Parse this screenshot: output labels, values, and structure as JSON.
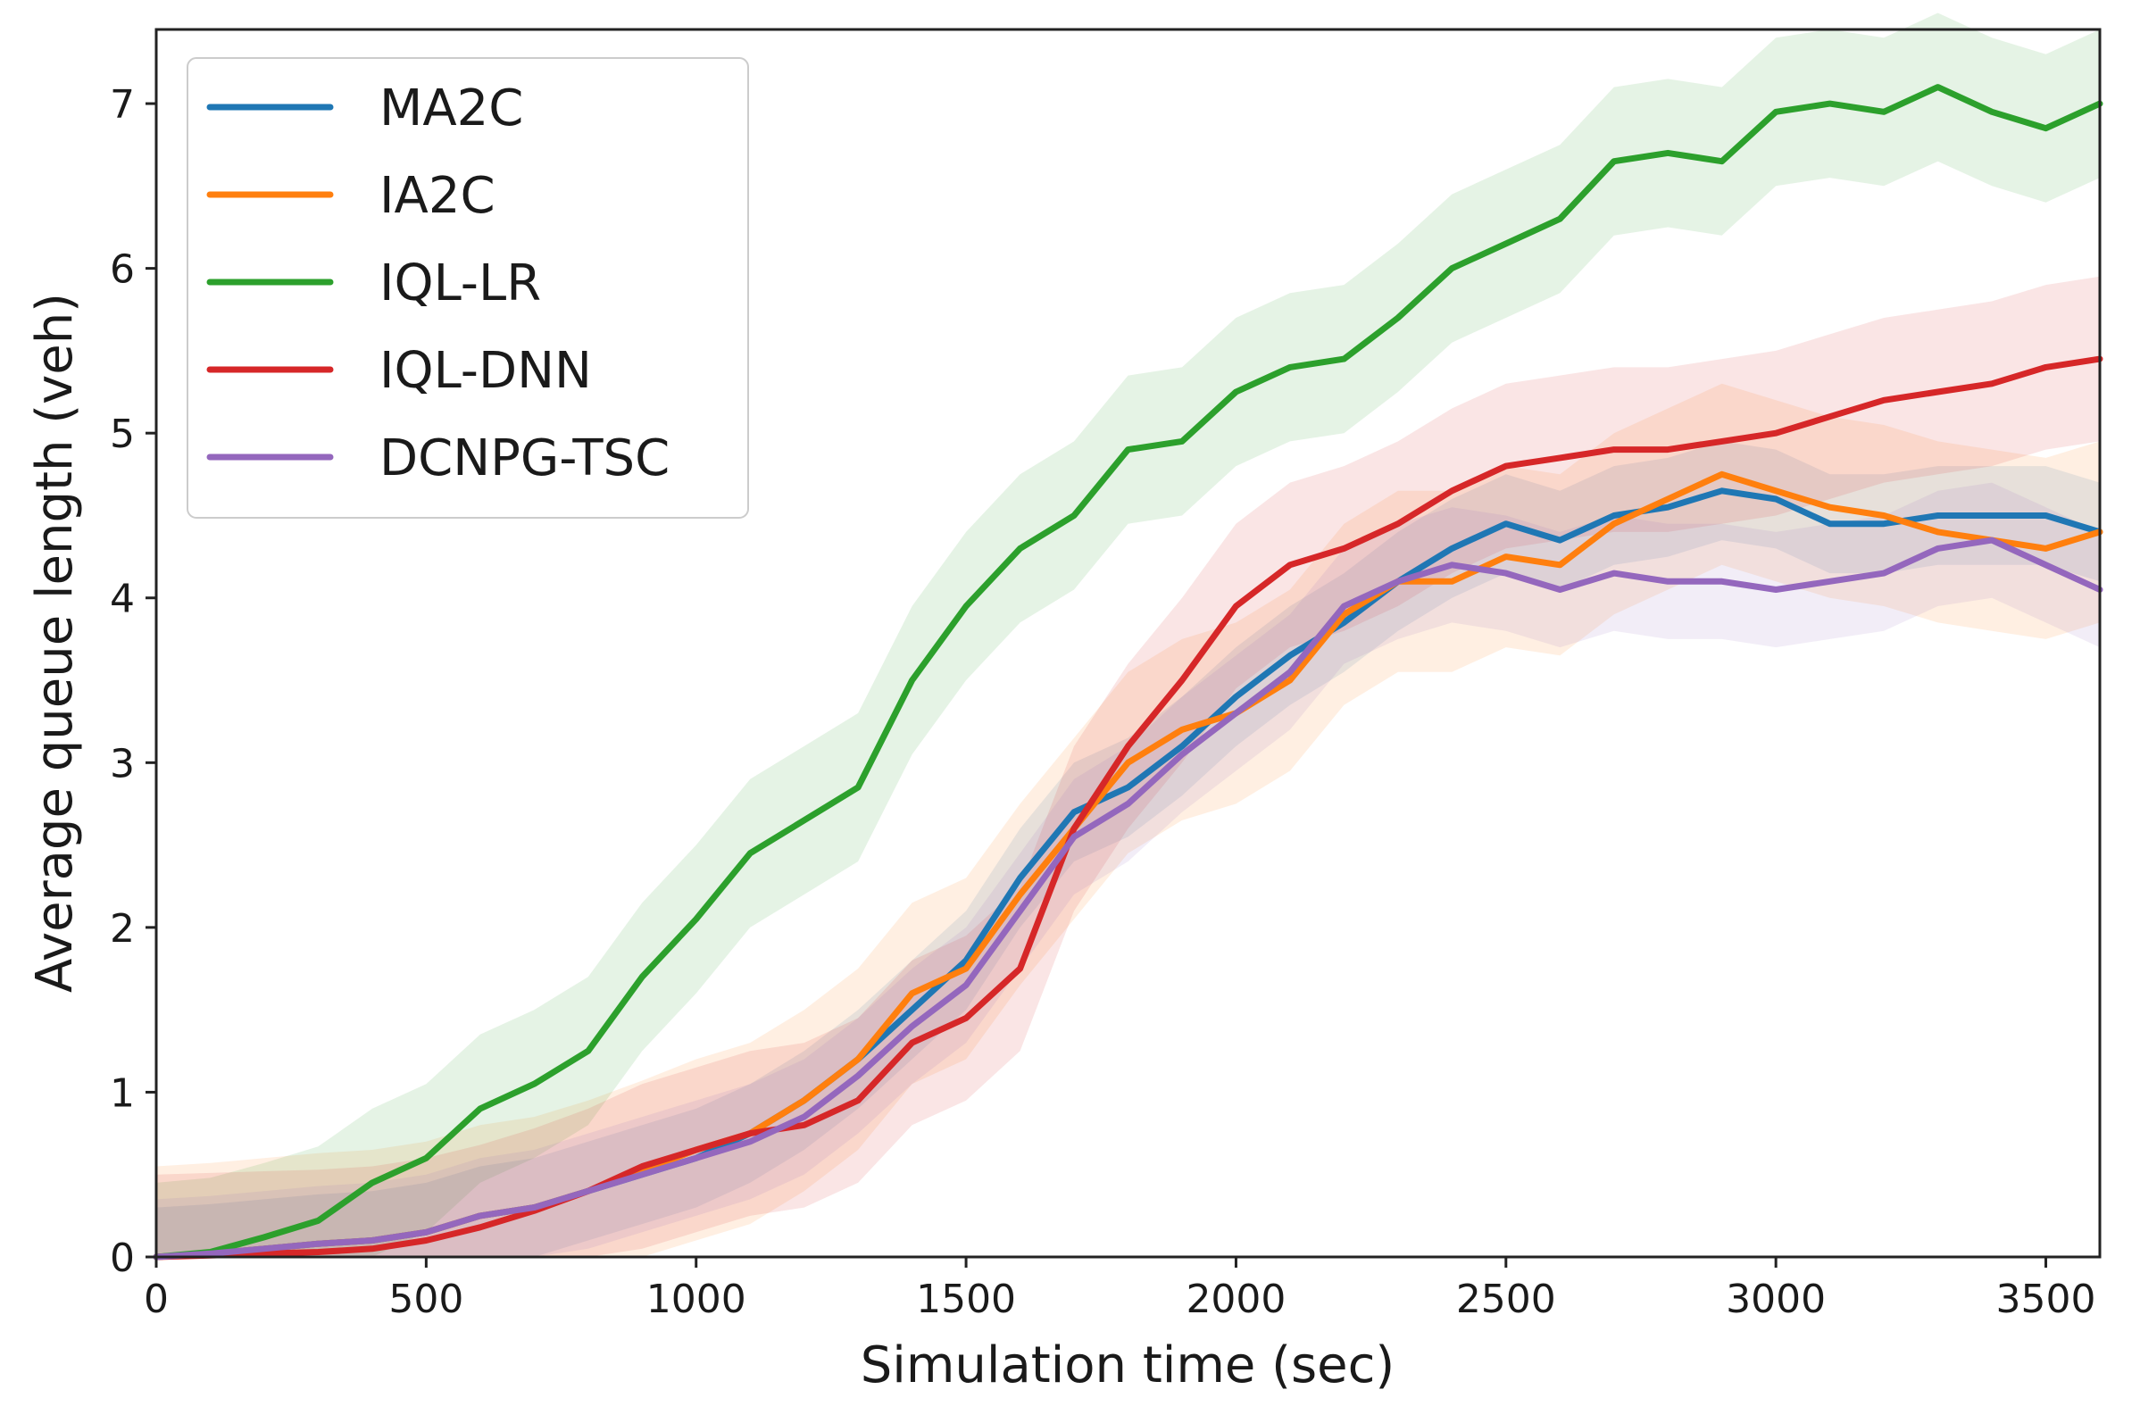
{
  "chart_data": {
    "type": "line",
    "title": "",
    "xlabel": "Simulation time (sec)",
    "ylabel": "Average queue length (veh)",
    "xlim": [
      0,
      3600
    ],
    "ylim": [
      0,
      7.45
    ],
    "xticks": [
      0,
      500,
      1000,
      1500,
      2000,
      2500,
      3000,
      3500
    ],
    "yticks": [
      0,
      1,
      2,
      3,
      4,
      5,
      6,
      7
    ],
    "grid": false,
    "legend_position": "top-left",
    "x": [
      0,
      100,
      200,
      300,
      400,
      500,
      600,
      700,
      800,
      900,
      1000,
      1100,
      1200,
      1300,
      1400,
      1500,
      1600,
      1700,
      1800,
      1900,
      2000,
      2100,
      2200,
      2300,
      2400,
      2500,
      2600,
      2700,
      2800,
      2900,
      3000,
      3100,
      3200,
      3300,
      3400,
      3500,
      3600
    ],
    "series": [
      {
        "name": "MA2C",
        "color": "#1f77b4",
        "values": [
          0,
          0.02,
          0.05,
          0.08,
          0.1,
          0.15,
          0.25,
          0.3,
          0.4,
          0.5,
          0.6,
          0.75,
          0.95,
          1.2,
          1.5,
          1.8,
          2.3,
          2.7,
          2.85,
          3.1,
          3.4,
          3.65,
          3.85,
          4.1,
          4.3,
          4.45,
          4.35,
          4.5,
          4.55,
          4.65,
          4.6,
          4.45,
          4.45,
          4.5,
          4.5,
          4.5,
          4.4
        ],
        "band": 0.3
      },
      {
        "name": "IA2C",
        "color": "#ff7f0e",
        "values": [
          0,
          0.02,
          0.05,
          0.08,
          0.1,
          0.15,
          0.25,
          0.3,
          0.4,
          0.52,
          0.65,
          0.75,
          0.95,
          1.2,
          1.6,
          1.75,
          2.2,
          2.6,
          3.0,
          3.2,
          3.3,
          3.5,
          3.9,
          4.1,
          4.1,
          4.25,
          4.2,
          4.45,
          4.6,
          4.75,
          4.65,
          4.55,
          4.5,
          4.4,
          4.35,
          4.3,
          4.4
        ],
        "band": 0.55
      },
      {
        "name": "IQL-LR",
        "color": "#2ca02c",
        "values": [
          0,
          0.03,
          0.12,
          0.22,
          0.45,
          0.6,
          0.9,
          1.05,
          1.25,
          1.7,
          2.05,
          2.45,
          2.65,
          2.85,
          3.5,
          3.95,
          4.3,
          4.5,
          4.9,
          4.95,
          5.25,
          5.4,
          5.45,
          5.7,
          6.0,
          6.15,
          6.3,
          6.65,
          6.7,
          6.65,
          6.95,
          7.0,
          6.95,
          7.1,
          6.95,
          6.85,
          7.0
        ],
        "band": 0.45
      },
      {
        "name": "IQL-DNN",
        "color": "#d62728",
        "values": [
          0,
          0.01,
          0.02,
          0.03,
          0.05,
          0.1,
          0.18,
          0.28,
          0.4,
          0.55,
          0.65,
          0.75,
          0.8,
          0.95,
          1.3,
          1.45,
          1.75,
          2.6,
          3.1,
          3.5,
          3.95,
          4.2,
          4.3,
          4.45,
          4.65,
          4.8,
          4.85,
          4.9,
          4.9,
          4.95,
          5.0,
          5.1,
          5.2,
          5.25,
          5.3,
          5.4,
          5.45
        ],
        "band": 0.5
      },
      {
        "name": "DCNPG-TSC",
        "color": "#9467bd",
        "values": [
          0,
          0.02,
          0.05,
          0.08,
          0.1,
          0.15,
          0.25,
          0.3,
          0.4,
          0.5,
          0.6,
          0.7,
          0.85,
          1.1,
          1.4,
          1.65,
          2.1,
          2.55,
          2.75,
          3.05,
          3.3,
          3.55,
          3.95,
          4.1,
          4.2,
          4.15,
          4.05,
          4.15,
          4.1,
          4.1,
          4.05,
          4.1,
          4.15,
          4.3,
          4.35,
          4.2,
          4.05
        ],
        "band": 0.35
      }
    ]
  }
}
